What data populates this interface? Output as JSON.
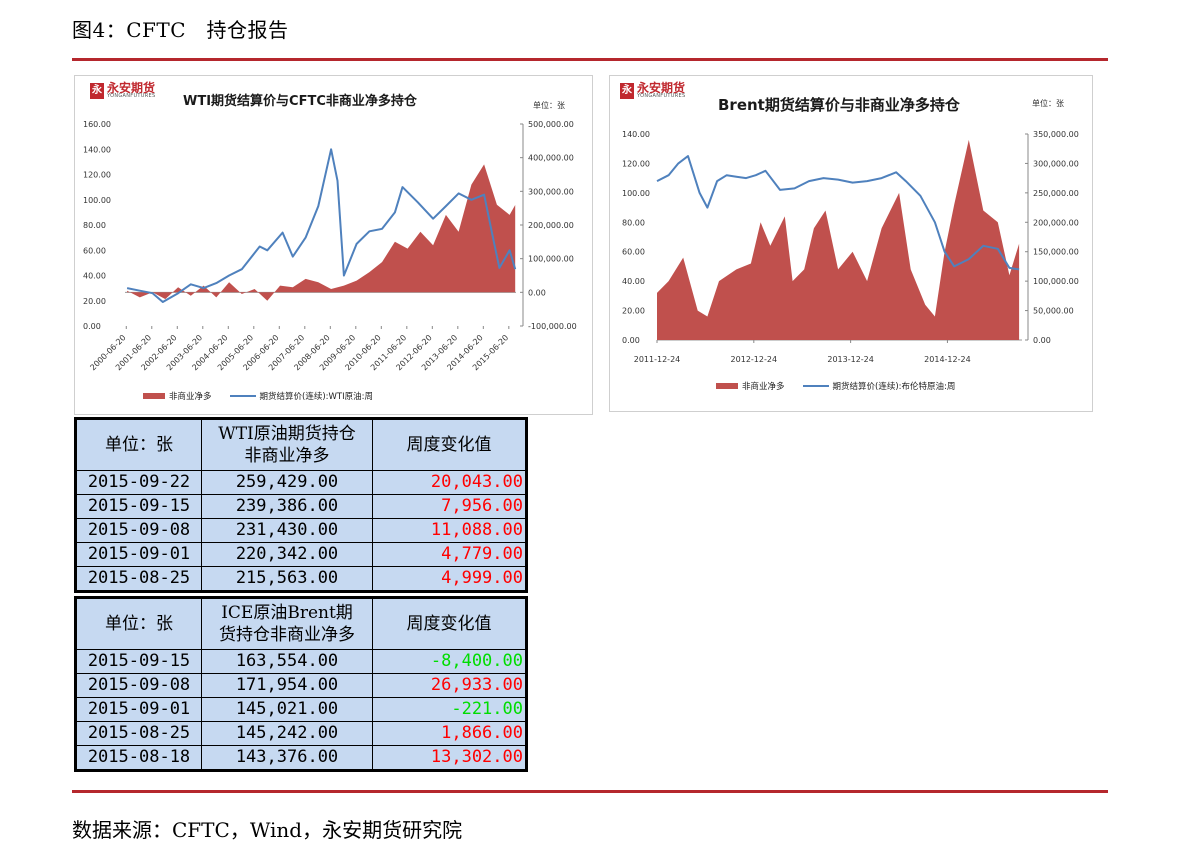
{
  "header": {
    "title": "图4：CFTC　持仓报告"
  },
  "footer": {
    "source": "数据来源：CFTC，Wind，永安期货研究院"
  },
  "logo": {
    "cn": "永安期货",
    "en": "YONGANFUTURES",
    "mark": "永"
  },
  "chart_data": [
    {
      "type": "area",
      "title": "WTI期货结算价与CFTC非商业净多持仓",
      "unit_label": "单位：张",
      "categories": [
        "2000-06-20",
        "2001-06-20",
        "2002-06-20",
        "2003-06-20",
        "2004-06-20",
        "2005-06-20",
        "2006-06-20",
        "2007-06-20",
        "2008-06-20",
        "2009-06-20",
        "2010-06-20",
        "2011-06-20",
        "2012-06-20",
        "2013-06-20",
        "2014-06-20",
        "2015-06-20"
      ],
      "y_left": {
        "ylim": [
          0,
          160
        ],
        "ticks": [
          "0.00",
          "20.00",
          "40.00",
          "60.00",
          "80.00",
          "100.00",
          "120.00",
          "140.00",
          "160.00"
        ]
      },
      "y_right": {
        "ylim": [
          -100000,
          500000
        ],
        "ticks": [
          "-100,000.00",
          "0.00",
          "100,000.00",
          "200,000.00",
          "300,000.00",
          "400,000.00",
          "500,000.00"
        ]
      },
      "series": [
        {
          "name": "非商业净多",
          "type": "area",
          "axis": "right",
          "color": "#c0504d",
          "x": [
            2000.5,
            2001.0,
            2001.5,
            2002.0,
            2002.5,
            2003.0,
            2003.5,
            2004.0,
            2004.5,
            2005.0,
            2005.5,
            2006.0,
            2006.5,
            2007.0,
            2007.5,
            2008.0,
            2008.5,
            2009.0,
            2009.5,
            2010.0,
            2010.5,
            2011.0,
            2011.5,
            2012.0,
            2012.5,
            2013.0,
            2013.5,
            2014.0,
            2014.5,
            2015.0,
            2015.5,
            2015.72
          ],
          "values": [
            5000,
            -15000,
            0,
            -20000,
            15000,
            -10000,
            20000,
            -15000,
            30000,
            -5000,
            10000,
            -25000,
            20000,
            15000,
            40000,
            30000,
            10000,
            20000,
            35000,
            60000,
            90000,
            150000,
            130000,
            180000,
            140000,
            230000,
            180000,
            320000,
            380000,
            260000,
            230000,
            259429
          ]
        },
        {
          "name": "期货结算价(连续):WTI原油:周",
          "type": "line",
          "axis": "left",
          "color": "#4f81bd",
          "x": [
            2000.5,
            2001.0,
            2001.5,
            2001.9,
            2002.5,
            2003.0,
            2003.5,
            2004.0,
            2004.5,
            2005.0,
            2005.7,
            2006.0,
            2006.6,
            2007.0,
            2007.5,
            2008.0,
            2008.5,
            2008.75,
            2009.0,
            2009.5,
            2010.0,
            2010.5,
            2011.0,
            2011.3,
            2011.9,
            2012.5,
            2013.0,
            2013.5,
            2014.0,
            2014.5,
            2014.9,
            2015.1,
            2015.5,
            2015.72
          ],
          "values": [
            30,
            28,
            26,
            19,
            26,
            33,
            30,
            34,
            40,
            45,
            63,
            60,
            74,
            55,
            70,
            95,
            140,
            115,
            40,
            65,
            75,
            77,
            90,
            110,
            98,
            85,
            95,
            105,
            100,
            104,
            65,
            46,
            60,
            45
          ]
        }
      ]
    },
    {
      "type": "area",
      "title": "Brent期货结算价与非商业净多持仓",
      "unit_label": "单位：张",
      "categories": [
        "2011-12-24",
        "2012-12-24",
        "2013-12-24",
        "2014-12-24"
      ],
      "y_left": {
        "ylim": [
          0,
          140
        ],
        "ticks": [
          "0.00",
          "20.00",
          "40.00",
          "60.00",
          "80.00",
          "100.00",
          "120.00",
          "140.00"
        ]
      },
      "y_right": {
        "ylim": [
          0,
          350000
        ],
        "ticks": [
          "0.00",
          "50,000.00",
          "100,000.00",
          "150,000.00",
          "200,000.00",
          "250,000.00",
          "300,000.00",
          "350,000.00"
        ]
      },
      "series": [
        {
          "name": "非商业净多",
          "type": "area",
          "axis": "right",
          "color": "#c0504d",
          "x": [
            2011.98,
            2012.1,
            2012.25,
            2012.4,
            2012.5,
            2012.62,
            2012.8,
            2012.95,
            2013.05,
            2013.15,
            2013.3,
            2013.38,
            2013.5,
            2013.6,
            2013.72,
            2013.85,
            2014.0,
            2014.15,
            2014.3,
            2014.48,
            2014.6,
            2014.75,
            2014.85,
            2014.95,
            2015.05,
            2015.2,
            2015.35,
            2015.5,
            2015.62,
            2015.72
          ],
          "values": [
            80000,
            100000,
            140000,
            50000,
            40000,
            100000,
            120000,
            130000,
            200000,
            160000,
            210000,
            100000,
            120000,
            190000,
            220000,
            120000,
            150000,
            100000,
            190000,
            250000,
            120000,
            60000,
            40000,
            150000,
            230000,
            340000,
            220000,
            200000,
            110000,
            163554
          ]
        },
        {
          "name": "期货结算价(连续):布伦特原油:周",
          "type": "line",
          "axis": "left",
          "color": "#4f81bd",
          "x": [
            2011.98,
            2012.1,
            2012.2,
            2012.3,
            2012.42,
            2012.5,
            2012.6,
            2012.7,
            2012.8,
            2012.9,
            2013.0,
            2013.1,
            2013.25,
            2013.4,
            2013.55,
            2013.7,
            2013.85,
            2014.0,
            2014.15,
            2014.3,
            2014.45,
            2014.55,
            2014.7,
            2014.85,
            2014.95,
            2015.05,
            2015.2,
            2015.35,
            2015.5,
            2015.62,
            2015.72
          ],
          "values": [
            108,
            112,
            120,
            125,
            100,
            90,
            108,
            112,
            111,
            110,
            112,
            115,
            102,
            103,
            108,
            110,
            109,
            107,
            108,
            110,
            114,
            108,
            98,
            80,
            60,
            50,
            55,
            64,
            62,
            49,
            48
          ]
        }
      ]
    }
  ],
  "tables": {
    "wti": {
      "headers": [
        "单位：张",
        "WTI原油期货持仓\n非商业净多",
        "周度变化值"
      ],
      "rows": [
        {
          "date": "2015-09-22",
          "value": "259,429.00",
          "change": "20,043.00",
          "dir": "up"
        },
        {
          "date": "2015-09-15",
          "value": "239,386.00",
          "change": "7,956.00",
          "dir": "up"
        },
        {
          "date": "2015-09-08",
          "value": "231,430.00",
          "change": "11,088.00",
          "dir": "up"
        },
        {
          "date": "2015-09-01",
          "value": "220,342.00",
          "change": "4,779.00",
          "dir": "up"
        },
        {
          "date": "2015-08-25",
          "value": "215,563.00",
          "change": "4,999.00",
          "dir": "up"
        }
      ]
    },
    "brent": {
      "headers": [
        "单位：张",
        "ICE原油Brent期\n货持仓非商业净多",
        "周度变化值"
      ],
      "rows": [
        {
          "date": "2015-09-15",
          "value": "163,554.00",
          "change": "-8,400.00",
          "dir": "down"
        },
        {
          "date": "2015-09-08",
          "value": "171,954.00",
          "change": "26,933.00",
          "dir": "up"
        },
        {
          "date": "2015-09-01",
          "value": "145,021.00",
          "change": "-221.00",
          "dir": "down"
        },
        {
          "date": "2015-08-25",
          "value": "145,242.00",
          "change": "1,866.00",
          "dir": "up"
        },
        {
          "date": "2015-08-18",
          "value": "143,376.00",
          "change": "13,302.00",
          "dir": "up"
        }
      ]
    }
  },
  "colors": {
    "accent_rule": "#b5272d",
    "table_bg": "#c6d9f1",
    "up": "#ff0000",
    "down": "#00dd00"
  }
}
